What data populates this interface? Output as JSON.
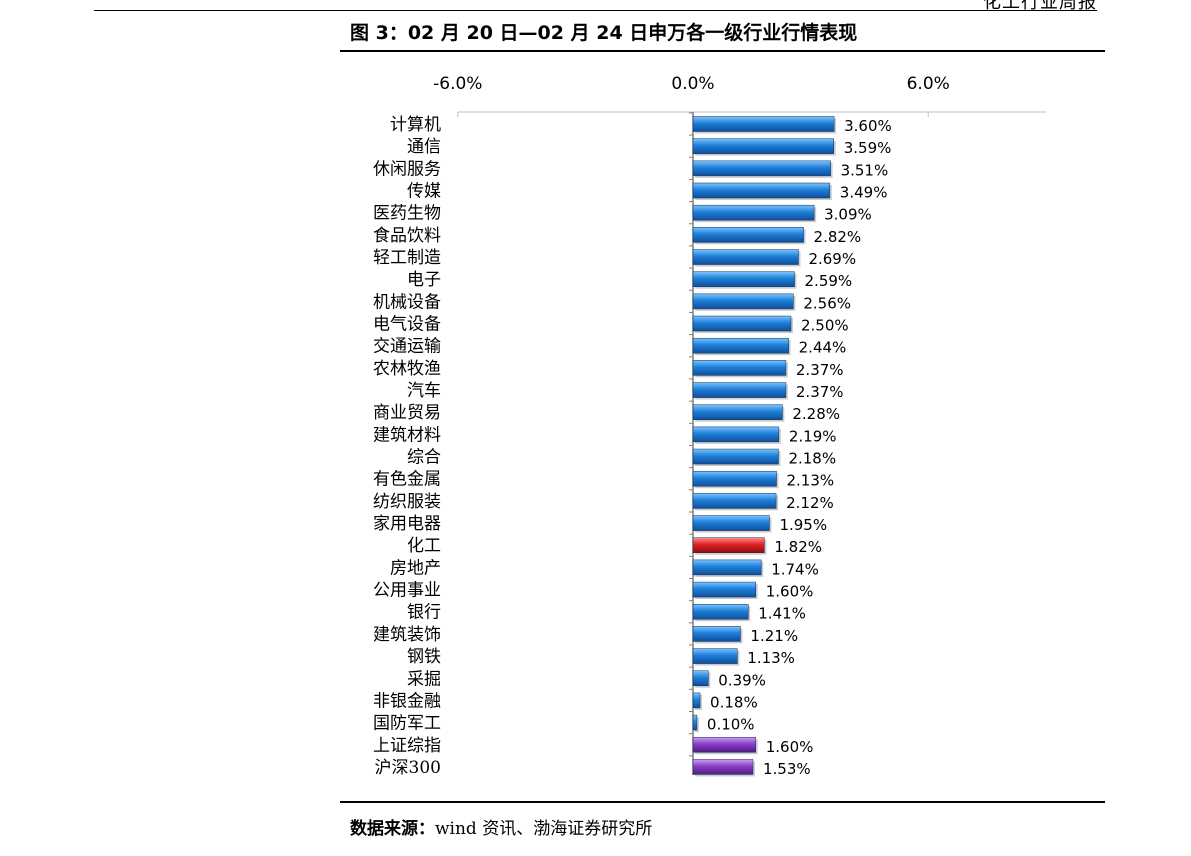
{
  "header": {
    "report_type": "化工行业周报"
  },
  "figure": {
    "title": "图 3：02 月 20 日—02 月 24 日申万各一级行业行情表现"
  },
  "source": {
    "label": "数据来源：",
    "text": "wind 资讯、渤海证券研究所"
  },
  "colors": {
    "default_bar": "#1e7fd8",
    "highlight_bar": "#e02222",
    "index_bar": "#8a3fc8"
  },
  "chart_data": {
    "type": "bar",
    "orientation": "horizontal",
    "xlim": [
      -6.0,
      6.0
    ],
    "xticks": [
      "-6.0%",
      "0.0%",
      "6.0%"
    ],
    "xtick_values": [
      -6.0,
      0.0,
      6.0
    ],
    "axis_position": "top",
    "grid": false,
    "legend": "none",
    "unit": "%",
    "categories": [
      "计算机",
      "通信",
      "休闲服务",
      "传媒",
      "医药生物",
      "食品饮料",
      "轻工制造",
      "电子",
      "机械设备",
      "电气设备",
      "交通运输",
      "农林牧渔",
      "汽车",
      "商业贸易",
      "建筑材料",
      "综合",
      "有色金属",
      "纺织服装",
      "家用电器",
      "化工",
      "房地产",
      "公用事业",
      "银行",
      "建筑装饰",
      "钢铁",
      "采掘",
      "非银金融",
      "国防军工",
      "上证综指",
      "沪深300"
    ],
    "values": [
      3.6,
      3.59,
      3.51,
      3.49,
      3.09,
      2.82,
      2.69,
      2.59,
      2.56,
      2.5,
      2.44,
      2.37,
      2.37,
      2.28,
      2.19,
      2.18,
      2.13,
      2.12,
      1.95,
      1.82,
      1.74,
      1.6,
      1.41,
      1.21,
      1.13,
      0.39,
      0.18,
      0.1,
      1.6,
      1.53
    ],
    "labels": [
      "3.60%",
      "3.59%",
      "3.51%",
      "3.49%",
      "3.09%",
      "2.82%",
      "2.69%",
      "2.59%",
      "2.56%",
      "2.50%",
      "2.44%",
      "2.37%",
      "2.37%",
      "2.28%",
      "2.19%",
      "2.18%",
      "2.13%",
      "2.12%",
      "1.95%",
      "1.82%",
      "1.74%",
      "1.60%",
      "1.41%",
      "1.21%",
      "1.13%",
      "0.39%",
      "0.18%",
      "0.10%",
      "1.60%",
      "1.53%"
    ],
    "highlight_category": "化工",
    "index_categories": [
      "上证综指",
      "沪深300"
    ]
  }
}
